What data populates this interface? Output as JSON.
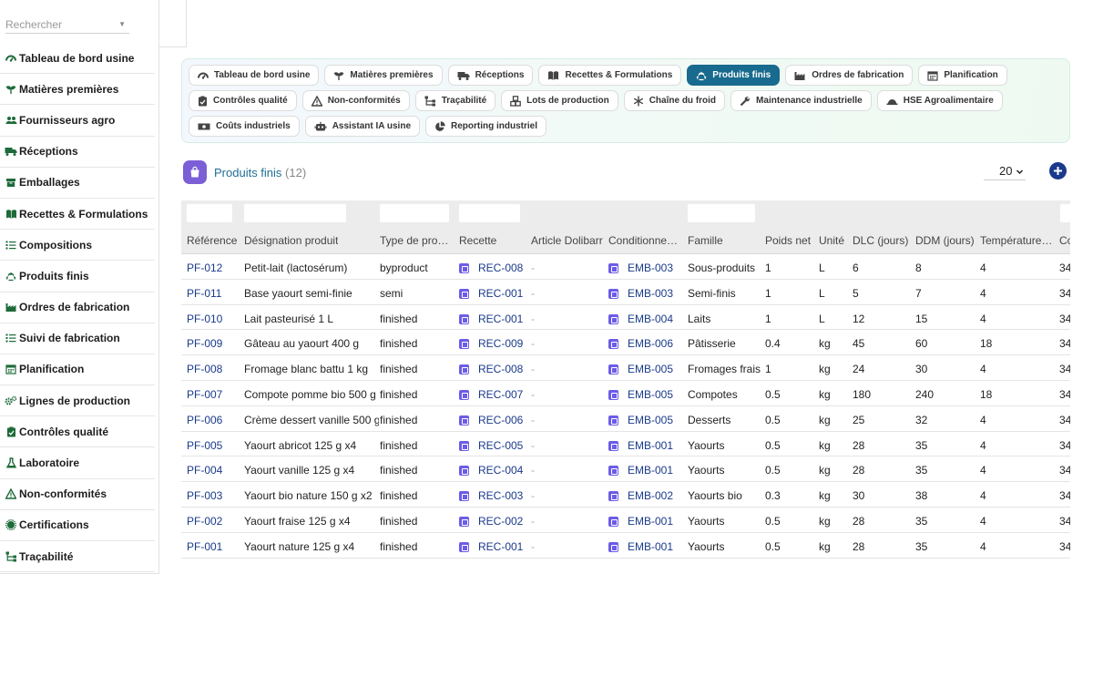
{
  "sidebar": {
    "search_placeholder": "Rechercher",
    "items": [
      {
        "label": "Tableau de bord usine",
        "icon": "gauge-icon"
      },
      {
        "label": "Matières premières",
        "icon": "leaf-icon"
      },
      {
        "label": "Fournisseurs agro",
        "icon": "users-icon"
      },
      {
        "label": "Réceptions",
        "icon": "truck-icon"
      },
      {
        "label": "Emballages",
        "icon": "box-icon"
      },
      {
        "label": "Recettes & Formulations",
        "icon": "book-icon"
      },
      {
        "label": "Compositions",
        "icon": "list-icon"
      },
      {
        "label": "Produits finis",
        "icon": "recycle-icon"
      },
      {
        "label": "Ordres de fabrication",
        "icon": "industry-icon"
      },
      {
        "label": "Suivi de fabrication",
        "icon": "list-icon"
      },
      {
        "label": "Planification",
        "icon": "calendar-icon"
      },
      {
        "label": "Lignes de production",
        "icon": "gears-icon"
      },
      {
        "label": "Contrôles qualité",
        "icon": "clipboard-check-icon"
      },
      {
        "label": "Laboratoire",
        "icon": "flask-icon"
      },
      {
        "label": "Non-conformités",
        "icon": "warning-icon"
      },
      {
        "label": "Certifications",
        "icon": "certificate-icon"
      },
      {
        "label": "Traçabilité",
        "icon": "sitemap-icon"
      }
    ]
  },
  "tabs": [
    {
      "label": "Tableau de bord usine",
      "icon": "gauge-icon",
      "active": false
    },
    {
      "label": "Matières premières",
      "icon": "leaf-icon",
      "active": false
    },
    {
      "label": "Réceptions",
      "icon": "truck-icon",
      "active": false
    },
    {
      "label": "Recettes & Formulations",
      "icon": "book-icon",
      "active": false
    },
    {
      "label": "Produits finis",
      "icon": "recycle-icon",
      "active": true
    },
    {
      "label": "Ordres de fabrication",
      "icon": "industry-icon",
      "active": false
    },
    {
      "label": "Planification",
      "icon": "calendar-icon",
      "active": false
    },
    {
      "label": "Contrôles qualité",
      "icon": "clipboard-check-icon",
      "active": false
    },
    {
      "label": "Non-conformités",
      "icon": "warning-icon",
      "active": false
    },
    {
      "label": "Traçabilité",
      "icon": "sitemap-icon",
      "active": false
    },
    {
      "label": "Lots de production",
      "icon": "cubes-icon",
      "active": false
    },
    {
      "label": "Chaîne du froid",
      "icon": "snowflake-icon",
      "active": false
    },
    {
      "label": "Maintenance industrielle",
      "icon": "wrench-icon",
      "active": false
    },
    {
      "label": "HSE Agroalimentaire",
      "icon": "helmet-icon",
      "active": false
    },
    {
      "label": "Coûts industriels",
      "icon": "money-icon",
      "active": false
    },
    {
      "label": "Assistant IA usine",
      "icon": "robot-icon",
      "active": false
    },
    {
      "label": "Reporting industriel",
      "icon": "chart-pie-icon",
      "active": false
    }
  ],
  "page": {
    "title": "Produits finis",
    "count": "(12)",
    "page_size": "20"
  },
  "colors": {
    "accent": "#186a8e",
    "link": "#1a3a8a",
    "icon_purple": "#7c5fd6",
    "sidebar_icon_green": "#1e6b3a"
  },
  "table": {
    "columns": [
      "Référence",
      "Désignation produit",
      "Type de pro…",
      "Recette",
      "Article Dolibarr",
      "Conditionne…",
      "Famille",
      "Poids net",
      "Unité",
      "DLC (jours)",
      "DDM (jours)",
      "Température…",
      "Co"
    ],
    "rows": [
      {
        "ref": "PF-012",
        "name": "Petit-lait (lactosérum)",
        "type": "byproduct",
        "recipe": "REC-008",
        "dolibarr": "-",
        "pack": "EMB-003",
        "family": "Sous-produits",
        "weight": "1",
        "unit": "L",
        "dlc": "6",
        "ddm": "8",
        "temp": "4",
        "co": "34"
      },
      {
        "ref": "PF-011",
        "name": "Base yaourt semi-finie",
        "type": "semi",
        "recipe": "REC-001",
        "dolibarr": "-",
        "pack": "EMB-003",
        "family": "Semi-finis",
        "weight": "1",
        "unit": "L",
        "dlc": "5",
        "ddm": "7",
        "temp": "4",
        "co": "34"
      },
      {
        "ref": "PF-010",
        "name": "Lait pasteurisé 1 L",
        "type": "finished",
        "recipe": "REC-001",
        "dolibarr": "-",
        "pack": "EMB-004",
        "family": "Laits",
        "weight": "1",
        "unit": "L",
        "dlc": "12",
        "ddm": "15",
        "temp": "4",
        "co": "34"
      },
      {
        "ref": "PF-009",
        "name": "Gâteau au yaourt 400 g",
        "type": "finished",
        "recipe": "REC-009",
        "dolibarr": "-",
        "pack": "EMB-006",
        "family": "Pâtisserie",
        "weight": "0.4",
        "unit": "kg",
        "dlc": "45",
        "ddm": "60",
        "temp": "18",
        "co": "34"
      },
      {
        "ref": "PF-008",
        "name": "Fromage blanc battu 1 kg",
        "type": "finished",
        "recipe": "REC-008",
        "dolibarr": "-",
        "pack": "EMB-005",
        "family": "Fromages frais",
        "weight": "1",
        "unit": "kg",
        "dlc": "24",
        "ddm": "30",
        "temp": "4",
        "co": "34"
      },
      {
        "ref": "PF-007",
        "name": "Compote pomme bio 500 g",
        "type": "finished",
        "recipe": "REC-007",
        "dolibarr": "-",
        "pack": "EMB-005",
        "family": "Compotes",
        "weight": "0.5",
        "unit": "kg",
        "dlc": "180",
        "ddm": "240",
        "temp": "18",
        "co": "34"
      },
      {
        "ref": "PF-006",
        "name": "Crème dessert vanille 500 g",
        "type": "finished",
        "recipe": "REC-006",
        "dolibarr": "-",
        "pack": "EMB-005",
        "family": "Desserts",
        "weight": "0.5",
        "unit": "kg",
        "dlc": "25",
        "ddm": "32",
        "temp": "4",
        "co": "34"
      },
      {
        "ref": "PF-005",
        "name": "Yaourt abricot 125 g x4",
        "type": "finished",
        "recipe": "REC-005",
        "dolibarr": "-",
        "pack": "EMB-001",
        "family": "Yaourts",
        "weight": "0.5",
        "unit": "kg",
        "dlc": "28",
        "ddm": "35",
        "temp": "4",
        "co": "34"
      },
      {
        "ref": "PF-004",
        "name": "Yaourt vanille 125 g x4",
        "type": "finished",
        "recipe": "REC-004",
        "dolibarr": "-",
        "pack": "EMB-001",
        "family": "Yaourts",
        "weight": "0.5",
        "unit": "kg",
        "dlc": "28",
        "ddm": "35",
        "temp": "4",
        "co": "34"
      },
      {
        "ref": "PF-003",
        "name": "Yaourt bio nature 150 g x2",
        "type": "finished",
        "recipe": "REC-003",
        "dolibarr": "-",
        "pack": "EMB-002",
        "family": "Yaourts bio",
        "weight": "0.3",
        "unit": "kg",
        "dlc": "30",
        "ddm": "38",
        "temp": "4",
        "co": "34"
      },
      {
        "ref": "PF-002",
        "name": "Yaourt fraise 125 g x4",
        "type": "finished",
        "recipe": "REC-002",
        "dolibarr": "-",
        "pack": "EMB-001",
        "family": "Yaourts",
        "weight": "0.5",
        "unit": "kg",
        "dlc": "28",
        "ddm": "35",
        "temp": "4",
        "co": "34"
      },
      {
        "ref": "PF-001",
        "name": "Yaourt nature 125 g x4",
        "type": "finished",
        "recipe": "REC-001",
        "dolibarr": "-",
        "pack": "EMB-001",
        "family": "Yaourts",
        "weight": "0.5",
        "unit": "kg",
        "dlc": "28",
        "ddm": "35",
        "temp": "4",
        "co": "34"
      }
    ]
  }
}
